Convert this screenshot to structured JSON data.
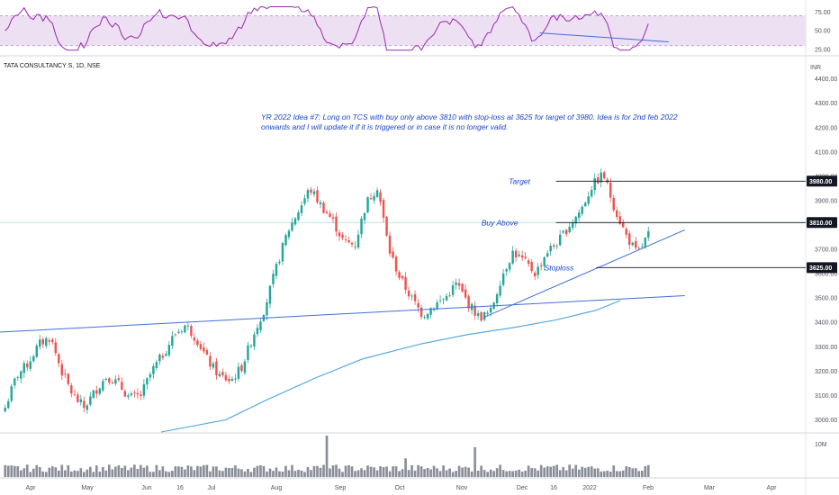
{
  "header": {
    "symbol": "TATA CONSULTANCY S, 1D, NSE",
    "currency": "INR"
  },
  "idea": {
    "line1": "YR 2022 Idea #7: Long  on TCS with buy  only above 3810 with stop-loss at 3625 for target of 3980.  Idea is for  2nd feb 2022",
    "line2": "onwards and I will update it if it is triggered or in case it is no longer valid."
  },
  "colors": {
    "up": "#26a69a",
    "down": "#ef5350",
    "trendline": "#3f6fd8",
    "ema": "#4aa3df",
    "rsi": "#9c27b0",
    "rsi_band": "#ede0f3",
    "volume": "#8a8e99",
    "annotation": "#1848cc"
  },
  "chart_data": [
    {
      "type": "candlestick",
      "panel": "price",
      "y_ticks": [
        3000,
        3100,
        3200,
        3300,
        3400,
        3500,
        3600,
        3700,
        3800,
        3900,
        4000,
        4100,
        4200,
        4300,
        4400
      ],
      "y_tick_labels": [
        "3000.00",
        "3100.00",
        "3200.00",
        "3300.00",
        "3400.00",
        "3500.00",
        "3600.00",
        "3700.00",
        "3800.00",
        "3900.00",
        "4000.00",
        "4100.00",
        "4200.00",
        "4300.00",
        "4400.00"
      ],
      "ylim": [
        2950,
        4480
      ],
      "x_labels": [
        "Apr",
        "May",
        "Jun",
        "16",
        "Jul",
        "Aug",
        "Sep",
        "Oct",
        "Nov",
        "Dec",
        "16",
        "2022",
        "Feb",
        "Mar",
        "Apr"
      ],
      "close_path": [
        3050,
        3180,
        3230,
        3310,
        3340,
        3200,
        3100,
        3050,
        3120,
        3180,
        3150,
        3090,
        3100,
        3200,
        3270,
        3350,
        3390,
        3330,
        3240,
        3180,
        3160,
        3220,
        3350,
        3460,
        3620,
        3770,
        3860,
        3950,
        3880,
        3820,
        3730,
        3720,
        3890,
        3960,
        3700,
        3580,
        3500,
        3430,
        3470,
        3500,
        3560,
        3480,
        3420,
        3440,
        3590,
        3690,
        3650,
        3600,
        3690,
        3730,
        3800,
        3860,
        3960,
        4010,
        3870,
        3760,
        3680,
        3760
      ],
      "series": [
        {
          "name": "",
          "kind": "ema",
          "points": [
            [
              0.2,
              2950
            ],
            [
              0.28,
              3000
            ],
            [
              0.33,
              3080
            ],
            [
              0.39,
              3170
            ],
            [
              0.45,
              3250
            ],
            [
              0.52,
              3310
            ],
            [
              0.58,
              3350
            ],
            [
              0.64,
              3380
            ],
            [
              0.69,
              3410
            ],
            [
              0.74,
              3450
            ],
            [
              0.77,
              3490
            ]
          ]
        }
      ],
      "trendlines": [
        {
          "from": [
            0.0,
            3360
          ],
          "to": [
            0.85,
            3510
          ]
        },
        {
          "from": [
            0.6,
            3420
          ],
          "to": [
            0.85,
            3780
          ]
        }
      ],
      "levels": [
        {
          "label": "Target",
          "value": 3980,
          "badge": "3980.00"
        },
        {
          "label": "Buy Above",
          "value": 3810,
          "badge": "3810.00"
        },
        {
          "label": "Stoploss",
          "value": 3625,
          "badge": "3625.00"
        }
      ]
    },
    {
      "type": "line",
      "panel": "rsi",
      "y_ticks": [
        25,
        50,
        75
      ],
      "y_tick_labels": [
        "25.00",
        "50.00",
        "75.00"
      ],
      "ylim": [
        20,
        85
      ],
      "band": [
        30,
        70
      ],
      "trendline": {
        "from": [
          0.67,
          47
        ],
        "to": [
          0.83,
          35
        ]
      }
    },
    {
      "type": "bar",
      "panel": "volume",
      "y_ticks": [
        10
      ],
      "y_tick_labels": [
        "10M"
      ],
      "spikes": [
        [
          0.5,
          1.0
        ],
        [
          0.73,
          0.72
        ],
        [
          0.62,
          0.45
        ]
      ]
    }
  ]
}
